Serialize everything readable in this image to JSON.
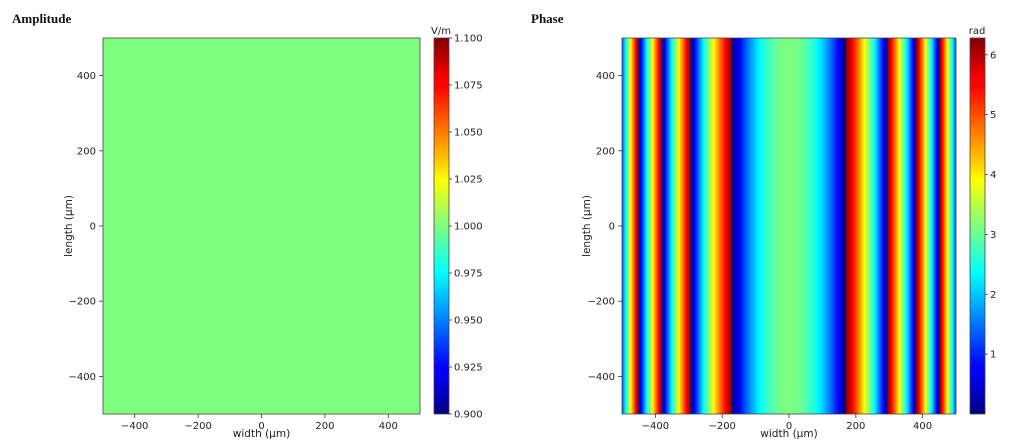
{
  "chart_data": [
    {
      "type": "heatmap",
      "title": "Amplitude",
      "xlabel": "width (µm)",
      "ylabel": "length (µm)",
      "xlim": [
        -500,
        500
      ],
      "ylim": [
        -500,
        500
      ],
      "x_ticks": [
        -400,
        -200,
        0,
        200,
        400
      ],
      "y_ticks": [
        400,
        200,
        0,
        -200,
        -400
      ],
      "field": "uniform",
      "value": 1.0,
      "colorbar": {
        "label": "V/m",
        "range": [
          0.9,
          1.1
        ],
        "colormap": "jet",
        "ticks": [
          "0.900",
          "0.925",
          "0.950",
          "0.975",
          "1.000",
          "1.025",
          "1.050",
          "1.075",
          "1.100"
        ]
      }
    },
    {
      "type": "heatmap",
      "title": "Phase",
      "xlabel": "width (µm)",
      "ylabel": "length (µm)",
      "xlim": [
        -500,
        500
      ],
      "ylim": [
        -500,
        500
      ],
      "x_ticks": [
        -400,
        -200,
        0,
        200,
        400
      ],
      "y_ticks": [
        400,
        200,
        0,
        -200,
        -400
      ],
      "field": "stripes varying along x only; phase = 2*pi*mod(0.5 - x^2/58000, 1), constant along y",
      "colorbar": {
        "label": "rad",
        "range": [
          0,
          6.28
        ],
        "colormap": "jet",
        "ticks": [
          "1",
          "2",
          "3",
          "4",
          "5",
          "6"
        ]
      }
    }
  ]
}
